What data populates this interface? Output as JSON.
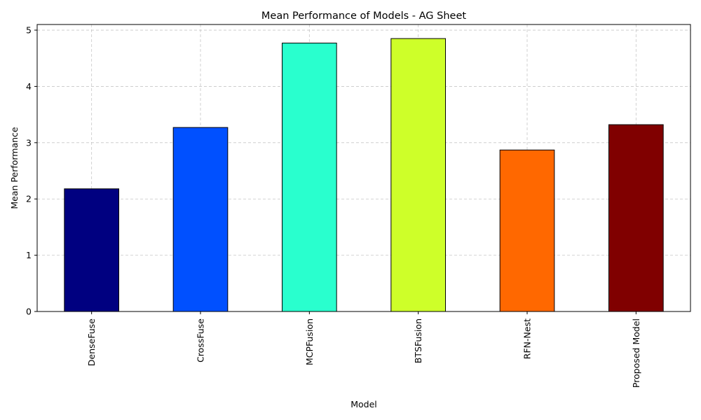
{
  "chart_data": {
    "type": "bar",
    "title": "Mean Performance of Models - AG Sheet",
    "xlabel": "Model",
    "ylabel": "Mean Performance",
    "categories": [
      "DenseFuse",
      "CrossFuse",
      "MCPFusion",
      "BTSFusion",
      "RFN-Nest",
      "Proposed Model"
    ],
    "values": [
      2.18,
      3.27,
      4.77,
      4.85,
      2.87,
      3.32
    ],
    "colors": [
      "#000080",
      "#0050ff",
      "#29ffce",
      "#ceff29",
      "#ff6800",
      "#800000"
    ],
    "ylim": [
      0,
      5.1
    ],
    "yticks": [
      0,
      1,
      2,
      3,
      4,
      5
    ],
    "grid": true,
    "legend": "none"
  }
}
